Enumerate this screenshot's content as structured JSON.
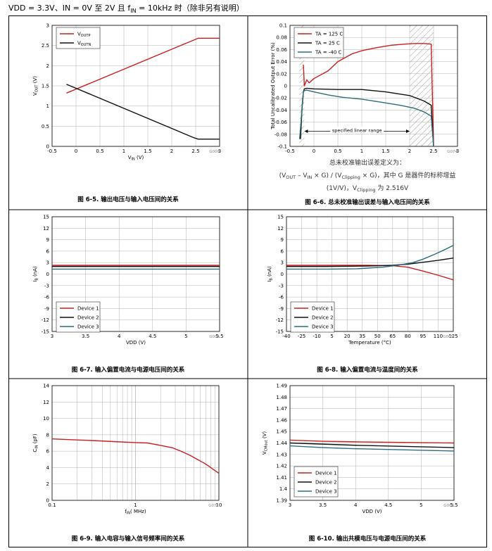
{
  "header": {
    "prefix": "VDD = 3.3V、IN = 0V 至 2V 且 f",
    "sub": "IN",
    "suffix": " = 10kHz 时（除非另有说明）"
  },
  "colors": {
    "red": "#cc1f1f",
    "black": "#111111",
    "teal": "#2e6e7a",
    "grid": "#b0b0b0"
  },
  "chart_data": [
    {
      "id": "fig5",
      "type": "line",
      "caption": "图 6-5. 输出电压与输入电压间的关系",
      "code": "G006",
      "xlabel": "V",
      "xlabel_sub": "IN",
      "xlabel_unit": " (V)",
      "ylabel": "V",
      "ylabel_sub": "OUT",
      "ylabel_unit": " (V)",
      "xlim": [
        -0.5,
        3
      ],
      "ylim": [
        0,
        3
      ],
      "xticks": [
        -0.5,
        0,
        0.5,
        1,
        1.5,
        2,
        2.5,
        3
      ],
      "yticks": [
        0,
        0.5,
        1,
        1.5,
        2,
        2.5,
        3
      ],
      "xtick_labels": [
        "-0.5",
        "0",
        "0.5",
        "1",
        "1.5",
        "2",
        "2.5",
        "3"
      ],
      "ytick_labels": [
        "0",
        "0.5",
        "1",
        "1.5",
        "2",
        "2.5",
        "3"
      ],
      "series": [
        {
          "name": "V",
          "sub": "OUTP",
          "color": "red",
          "x": [
            -0.2,
            2.45,
            2.55,
            3
          ],
          "y": [
            1.32,
            2.63,
            2.68,
            2.68
          ]
        },
        {
          "name": "V",
          "sub": "OUTN",
          "color": "black",
          "x": [
            -0.2,
            2.45,
            2.55,
            3
          ],
          "y": [
            1.54,
            0.22,
            0.18,
            0.18
          ]
        }
      ]
    },
    {
      "id": "fig6",
      "type": "line",
      "caption": "图 6-6. 总未校准输出误差与输入电压间的关系",
      "code": "G074",
      "xlabel": "",
      "ylabel": "Total Uncalibrated Output Error (%)",
      "xlim": [
        -0.5,
        3
      ],
      "ylim": [
        -0.1,
        0.1
      ],
      "xticks": [
        -0.5,
        0,
        0.5,
        1,
        1.5,
        2,
        2.5,
        3
      ],
      "yticks": [
        -0.1,
        -0.08,
        -0.06,
        -0.04,
        -0.02,
        0,
        0.02,
        0.04,
        0.06,
        0.08,
        0.1
      ],
      "xtick_labels": [
        "-0.5",
        "0",
        "0.5",
        "1",
        "1.5",
        "2",
        "2.5",
        "3"
      ],
      "ytick_labels": [
        "-0.1",
        "-0.08",
        "-0.06",
        "-0.04",
        "-0.02",
        "0",
        "0.02",
        "0.04",
        "0.06",
        "0.08",
        "0.1"
      ],
      "hatch": [
        [
          -0.3,
          -0.2
        ],
        [
          2.0,
          2.5
        ]
      ],
      "annotation": "specified linear range",
      "annotation_range": [
        -0.2,
        2.0
      ],
      "annotation_y": -0.075,
      "series": [
        {
          "name": "TA = 125 C",
          "color": "red",
          "x": [
            -0.22,
            -0.2,
            -0.15,
            -0.1,
            0,
            0.3,
            0.5,
            0.8,
            1,
            1.3,
            1.6,
            1.9,
            2.1,
            2.3,
            2.45,
            2.5
          ],
          "y": [
            0.035,
            0.0,
            0.01,
            0.005,
            0.012,
            0.025,
            0.04,
            0.053,
            0.058,
            0.063,
            0.067,
            0.069,
            0.07,
            0.07,
            0.069,
            -0.1
          ]
        },
        {
          "name": "TA = 25 C",
          "color": "black",
          "x": [
            -0.28,
            -0.25,
            -0.22,
            -0.2,
            -0.15,
            0,
            0.5,
            1,
            1.5,
            2,
            2.3,
            2.45,
            2.5
          ],
          "y": [
            -0.088,
            -0.04,
            -0.01,
            -0.005,
            -0.004,
            -0.005,
            -0.006,
            -0.006,
            -0.01,
            -0.016,
            -0.025,
            -0.032,
            -0.1
          ]
        },
        {
          "name": "TA = -40 C",
          "color": "teal",
          "x": [
            -0.3,
            -0.27,
            -0.24,
            -0.22,
            -0.2,
            -0.15,
            0,
            0.3,
            0.6,
            1,
            1.4,
            1.8,
            2.1,
            2.3,
            2.45,
            2.5
          ],
          "y": [
            -0.088,
            -0.06,
            -0.025,
            -0.01,
            -0.008,
            -0.007,
            -0.01,
            -0.015,
            -0.019,
            -0.022,
            -0.027,
            -0.032,
            -0.037,
            -0.043,
            -0.05,
            -0.1
          ]
        }
      ],
      "note_line1": "总未校准输出误差定义为：",
      "note_line2_parts": [
        "(V",
        "OUT",
        " – V",
        "IN",
        " × G) / (V",
        "Clipping",
        " × G)，其中 G 是器件的标称增益"
      ],
      "note_line3_parts": [
        "(1V/V)，V",
        "Clipping",
        " 为 2.516V"
      ]
    },
    {
      "id": "fig7",
      "type": "line",
      "caption": "图 6-7. 输入偏置电流与电源电压间的关系",
      "code": "G004",
      "xlabel": "VDD (V)",
      "ylabel": "I",
      "ylabel_sub": "B",
      "ylabel_unit": " (nA)",
      "xlim": [
        3,
        5.5
      ],
      "ylim": [
        -15,
        15
      ],
      "xticks": [
        3,
        3.5,
        4,
        4.5,
        5,
        5.5
      ],
      "yticks": [
        -15,
        -12,
        -9,
        -6,
        -3,
        0,
        3,
        6,
        9,
        12,
        15
      ],
      "xtick_labels": [
        "3",
        "3.5",
        "4",
        "4.5",
        "5",
        "5.5"
      ],
      "ytick_labels": [
        "-15",
        "-12",
        "-9",
        "-6",
        "-3",
        "0",
        "3",
        "6",
        "9",
        "12",
        "15"
      ],
      "series": [
        {
          "name": "Device 1",
          "color": "red",
          "x": [
            3,
            5.5
          ],
          "y": [
            2.3,
            2.3
          ]
        },
        {
          "name": "Device 2",
          "color": "black",
          "x": [
            3,
            5.5
          ],
          "y": [
            2.0,
            2.0
          ]
        },
        {
          "name": "Device 3",
          "color": "teal",
          "x": [
            3,
            5.5
          ],
          "y": [
            1.3,
            1.3
          ]
        }
      ]
    },
    {
      "id": "fig8",
      "type": "line",
      "caption": "图 6-8. 输入偏置电流与温度间的关系",
      "code": "G005",
      "xlabel": "Temperature (°C)",
      "ylabel": "I",
      "ylabel_sub": "B",
      "ylabel_unit": " (nA)",
      "xlim": [
        -40,
        125
      ],
      "ylim": [
        -15,
        15
      ],
      "xticks": [
        -40,
        -25,
        -10,
        5,
        20,
        35,
        50,
        65,
        80,
        95,
        110,
        125
      ],
      "yticks": [
        -15,
        -12,
        -9,
        -6,
        -3,
        0,
        3,
        6,
        9,
        12,
        15
      ],
      "xtick_labels": [
        "-40",
        "-25",
        "-10",
        "5",
        "20",
        "35",
        "50",
        "65",
        "80",
        "95",
        "110",
        "125"
      ],
      "ytick_labels": [
        "-15",
        "-12",
        "-9",
        "-6",
        "-3",
        "0",
        "3",
        "6",
        "9",
        "12",
        "15"
      ],
      "series": [
        {
          "name": "Device 1",
          "color": "red",
          "x": [
            -40,
            0,
            40,
            65,
            80,
            95,
            110,
            125
          ],
          "y": [
            2.3,
            2.3,
            2.3,
            2.2,
            1.8,
            0.8,
            -0.3,
            -1.5
          ]
        },
        {
          "name": "Device 2",
          "color": "black",
          "x": [
            -40,
            0,
            40,
            65,
            80,
            95,
            110,
            125
          ],
          "y": [
            2.0,
            2.0,
            2.1,
            2.3,
            2.6,
            3.1,
            3.6,
            4.2
          ]
        },
        {
          "name": "Device 3",
          "color": "teal",
          "x": [
            -40,
            0,
            30,
            55,
            70,
            85,
            95,
            105,
            115,
            125
          ],
          "y": [
            1.3,
            1.3,
            1.4,
            1.8,
            2.3,
            3.0,
            3.9,
            5.0,
            6.2,
            7.5
          ]
        }
      ]
    },
    {
      "id": "fig9",
      "type": "line",
      "caption": "图 6-9. 输入电容与输入信号频率间的关系",
      "code": "G071",
      "xlabel": "f",
      "xlabel_sub": "IN",
      "xlabel_unit": "( MHz)",
      "ylabel": "C",
      "ylabel_sub": "IN",
      "ylabel_unit": " (pF)",
      "xscale": "log",
      "xlim": [
        0.1,
        10
      ],
      "ylim": [
        0,
        14
      ],
      "xticks": [
        0.1,
        1,
        10
      ],
      "yticks": [
        0,
        2,
        4,
        6,
        8,
        10,
        12,
        14
      ],
      "xtick_labels": [
        "0.1",
        "1",
        "10"
      ],
      "ytick_labels": [
        "0",
        "2",
        "4",
        "6",
        "8",
        "10",
        "12",
        "14"
      ],
      "series": [
        {
          "name": "",
          "color": "red",
          "x": [
            0.1,
            0.3,
            0.6,
            1,
            1.4,
            2,
            2.8,
            3.5,
            4.5,
            5.5,
            6.5,
            7.5,
            8.5,
            10
          ],
          "y": [
            7.5,
            7.3,
            7.15,
            7.05,
            7.0,
            6.7,
            6.4,
            6.0,
            5.5,
            5.0,
            4.6,
            4.2,
            3.8,
            3.3
          ]
        }
      ]
    },
    {
      "id": "fig10",
      "type": "line",
      "caption": "图 6-10. 输出共模电压与电源电压间的关系",
      "code": "G009",
      "xlabel": "VDD (V)",
      "ylabel": "V",
      "ylabel_sub": "CMout",
      "ylabel_unit": " (V)",
      "xlim": [
        3,
        5.5
      ],
      "ylim": [
        1.39,
        1.49
      ],
      "xticks": [
        3,
        3.5,
        4,
        4.5,
        5,
        5.5
      ],
      "yticks": [
        1.39,
        1.4,
        1.41,
        1.42,
        1.43,
        1.44,
        1.45,
        1.46,
        1.47,
        1.48,
        1.49
      ],
      "xtick_labels": [
        "3",
        "3.5",
        "4",
        "4.5",
        "5",
        "5.5"
      ],
      "ytick_labels": [
        "1.39",
        "1.4",
        "1.41",
        "1.42",
        "1.43",
        "1.44",
        "1.45",
        "1.46",
        "1.47",
        "1.48",
        "1.49"
      ],
      "series": [
        {
          "name": "Device 1",
          "color": "red",
          "x": [
            3,
            3.5,
            4,
            5.5
          ],
          "y": [
            1.4425,
            1.4415,
            1.441,
            1.44
          ]
        },
        {
          "name": "Device 2",
          "color": "black",
          "x": [
            3,
            3.5,
            4,
            5.5
          ],
          "y": [
            1.44,
            1.439,
            1.438,
            1.436
          ]
        },
        {
          "name": "Device 3",
          "color": "teal",
          "x": [
            3,
            3.5,
            4,
            5.5
          ],
          "y": [
            1.4375,
            1.436,
            1.435,
            1.433
          ]
        }
      ]
    }
  ]
}
